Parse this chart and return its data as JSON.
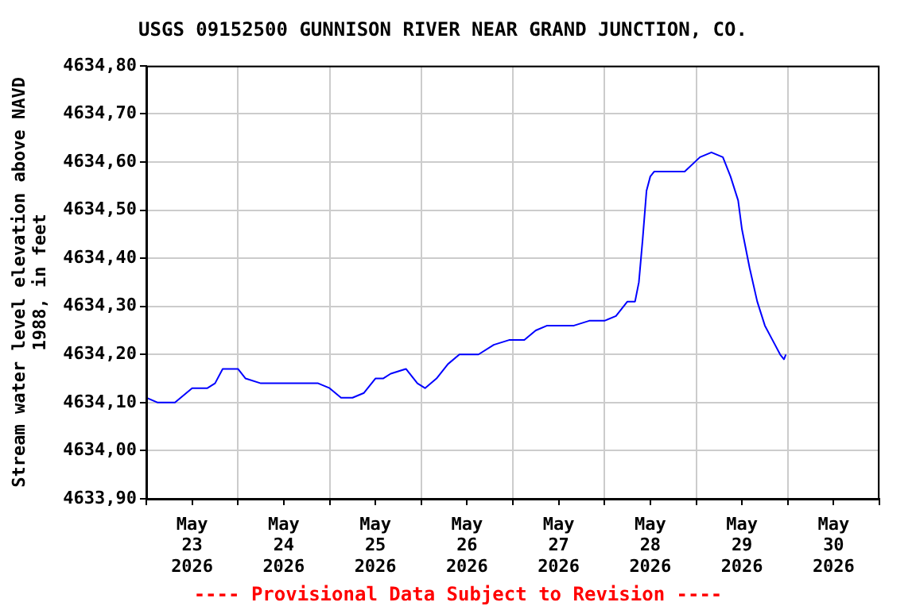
{
  "chart_data": {
    "type": "line",
    "title": "USGS 09152500 GUNNISON RIVER NEAR GRAND JUNCTION, CO.",
    "ylabel": "Stream water level elevation above NAVD 1988, in feet",
    "annotations": [
      "---- Provisional Data Subject to Revision ----"
    ],
    "x": [
      "2026-05-23T00:00",
      "2026-05-23T03:00",
      "2026-05-23T07:30",
      "2026-05-23T12:00",
      "2026-05-23T16:00",
      "2026-05-23T18:00",
      "2026-05-23T20:00",
      "2026-05-23T22:00",
      "2026-05-24T00:00",
      "2026-05-24T02:00",
      "2026-05-24T06:00",
      "2026-05-24T12:00",
      "2026-05-24T21:00",
      "2026-05-25T00:00",
      "2026-05-25T03:00",
      "2026-05-25T06:00",
      "2026-05-25T09:00",
      "2026-05-25T12:00",
      "2026-05-25T14:00",
      "2026-05-25T16:00",
      "2026-05-25T20:00",
      "2026-05-25T23:00",
      "2026-05-26T01:00",
      "2026-05-26T04:00",
      "2026-05-26T07:00",
      "2026-05-26T10:00",
      "2026-05-26T15:00",
      "2026-05-26T19:00",
      "2026-05-26T23:00",
      "2026-05-27T03:00",
      "2026-05-27T06:00",
      "2026-05-27T09:00",
      "2026-05-27T16:00",
      "2026-05-27T20:00",
      "2026-05-28T00:00",
      "2026-05-28T03:00",
      "2026-05-28T06:00",
      "2026-05-28T08:00",
      "2026-05-28T09:00",
      "2026-05-28T10:00",
      "2026-05-28T11:00",
      "2026-05-28T12:00",
      "2026-05-28T13:00",
      "2026-05-28T17:00",
      "2026-05-28T21:00",
      "2026-05-29T01:00",
      "2026-05-29T04:00",
      "2026-05-29T07:00",
      "2026-05-29T09:00",
      "2026-05-29T11:00",
      "2026-05-29T12:00",
      "2026-05-29T14:00",
      "2026-05-29T16:00",
      "2026-05-29T18:00",
      "2026-05-29T20:00",
      "2026-05-29T22:00",
      "2026-05-29T23:00",
      "2026-05-29T23:30"
    ],
    "series": [
      {
        "color": "#0000ff",
        "values": [
          4634.11,
          4634.1,
          4634.1,
          4634.13,
          4634.13,
          4634.14,
          4634.17,
          4634.17,
          4634.17,
          4634.15,
          4634.14,
          4634.14,
          4634.14,
          4634.13,
          4634.11,
          4634.11,
          4634.12,
          4634.15,
          4634.15,
          4634.16,
          4634.17,
          4634.14,
          4634.13,
          4634.15,
          4634.18,
          4634.2,
          4634.2,
          4634.22,
          4634.23,
          4634.23,
          4634.25,
          4634.26,
          4634.26,
          4634.27,
          4634.27,
          4634.28,
          4634.31,
          4634.31,
          4634.35,
          4634.44,
          4634.54,
          4634.57,
          4634.58,
          4634.58,
          4634.58,
          4634.61,
          4634.62,
          4634.61,
          4634.57,
          4634.52,
          4634.46,
          4634.38,
          4634.31,
          4634.26,
          4634.23,
          4634.2,
          4634.19,
          4634.2
        ]
      }
    ],
    "xlim": [
      "2026-05-23T00:00",
      "2026-05-31T00:00"
    ],
    "xticks": [
      {
        "value": "2026-05-23T00:00",
        "label": null
      },
      {
        "value": "2026-05-23T12:00",
        "label": "May 23 2026"
      },
      {
        "value": "2026-05-24T00:00",
        "label": null
      },
      {
        "value": "2026-05-24T12:00",
        "label": "May 24 2026"
      },
      {
        "value": "2026-05-25T00:00",
        "label": null
      },
      {
        "value": "2026-05-25T12:00",
        "label": "May 25 2026"
      },
      {
        "value": "2026-05-26T00:00",
        "label": null
      },
      {
        "value": "2026-05-26T12:00",
        "label": "May 26 2026"
      },
      {
        "value": "2026-05-27T00:00",
        "label": null
      },
      {
        "value": "2026-05-27T12:00",
        "label": "May 27 2026"
      },
      {
        "value": "2026-05-28T00:00",
        "label": null
      },
      {
        "value": "2026-05-28T12:00",
        "label": "May 28 2026"
      },
      {
        "value": "2026-05-29T00:00",
        "label": null
      },
      {
        "value": "2026-05-29T12:00",
        "label": "May 29 2026"
      },
      {
        "value": "2026-05-30T00:00",
        "label": null
      },
      {
        "value": "2026-05-30T12:00",
        "label": "May 30 2026"
      },
      {
        "value": "2026-05-31T00:00",
        "label": null
      }
    ],
    "ylim": [
      4633.9,
      4634.8
    ],
    "yticks": [
      {
        "value": 4633.9,
        "label": "4633,90"
      },
      {
        "value": 4634.0,
        "label": "4634,00"
      },
      {
        "value": 4634.1,
        "label": "4634,10"
      },
      {
        "value": 4634.2,
        "label": "4634,20"
      },
      {
        "value": 4634.3,
        "label": "4634,30"
      },
      {
        "value": 4634.4,
        "label": "4634,40"
      },
      {
        "value": 4634.5,
        "label": "4634,50"
      },
      {
        "value": 4634.6,
        "label": "4634,60"
      },
      {
        "value": 4634.7,
        "label": "4634,70"
      },
      {
        "value": 4634.8,
        "label": "4634,80"
      }
    ],
    "grid": true,
    "legend": false,
    "marker": "none",
    "line_style": "solid"
  }
}
